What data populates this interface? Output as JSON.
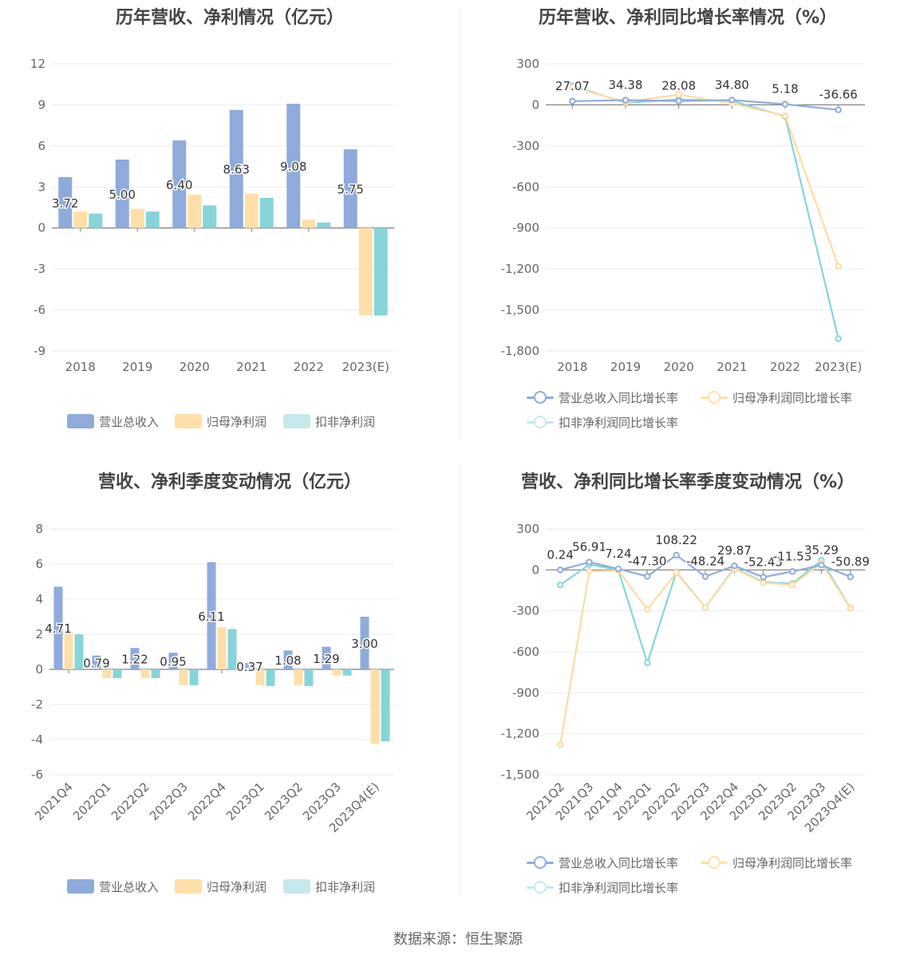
{
  "colors": {
    "revenue": "#8fabdb",
    "net": "#ffdfa8",
    "deduct": "#87d4d9"
  },
  "legends": {
    "bars": [
      "营业总收入",
      "归母净利润",
      "扣非净利润"
    ],
    "lines": [
      "营业总收入同比增长率",
      "归母净利润同比增长率",
      "扣非净利润同比增长率"
    ]
  },
  "footer": {
    "source": "数据来源：恒生聚源"
  },
  "chart_data": [
    {
      "type": "bar",
      "title": "历年营收、净利情况（亿元）",
      "categories": [
        "2018",
        "2019",
        "2020",
        "2021",
        "2022",
        "2023(E)"
      ],
      "ylim": [
        -9,
        12
      ],
      "yticks": [
        "12",
        "9",
        "6",
        "3",
        "0",
        "-3",
        "-6",
        "-9"
      ],
      "series": [
        {
          "name": "营业总收入",
          "values": [
            3.72,
            5.0,
            6.4,
            8.63,
            9.08,
            5.75
          ],
          "labels": [
            "3.72",
            "5.00",
            "6.40",
            "8.63",
            "9.08",
            "5.75"
          ]
        },
        {
          "name": "归母净利润",
          "values": [
            1.2,
            1.4,
            2.45,
            2.5,
            0.6,
            -6.4
          ]
        },
        {
          "name": "扣非净利润",
          "values": [
            1.05,
            1.2,
            1.65,
            2.2,
            0.4,
            -6.4
          ]
        }
      ],
      "legend": "bottom"
    },
    {
      "type": "line",
      "title": "历年营收、净利同比增长率情况（%）",
      "categories": [
        "2018",
        "2019",
        "2020",
        "2021",
        "2022",
        "2023(E)"
      ],
      "ylim": [
        -1800,
        300
      ],
      "yticks": [
        "300",
        "0",
        "-300",
        "-600",
        "-900",
        "-1,200",
        "-1,500",
        "-1,800"
      ],
      "series": [
        {
          "name": "营业总收入同比增长率",
          "values": [
            27.07,
            34.38,
            28.08,
            34.8,
            5.18,
            -36.66
          ],
          "labels": [
            "27.07",
            "34.38",
            "28.08",
            "34.80",
            "5.18",
            "-36.66"
          ]
        },
        {
          "name": "归母净利润同比增长率",
          "values": [
            130,
            20,
            75,
            10,
            -80,
            -1180
          ]
        },
        {
          "name": "扣非净利润同比增长率",
          "values": [
            140,
            15,
            40,
            30,
            -85,
            -1710
          ]
        }
      ],
      "legend": "bottom"
    },
    {
      "type": "bar",
      "title": "营收、净利季度变动情况（亿元）",
      "categories": [
        "2021Q4",
        "2022Q1",
        "2022Q2",
        "2022Q3",
        "2022Q4",
        "2023Q1",
        "2023Q2",
        "2023Q3",
        "2023Q4(E)"
      ],
      "ylim": [
        -6,
        8
      ],
      "yticks": [
        "8",
        "6",
        "4",
        "2",
        "0",
        "-2",
        "-4",
        "-6"
      ],
      "series": [
        {
          "name": "营业总收入",
          "values": [
            4.71,
            0.79,
            1.22,
            0.95,
            6.11,
            0.37,
            1.08,
            1.29,
            3.0
          ],
          "labels": [
            "4.71",
            "0.79",
            "1.22",
            "0.95",
            "6.11",
            "0.37",
            "1.08",
            "1.29",
            "3.00"
          ]
        },
        {
          "name": "归母净利润",
          "values": [
            2.1,
            -0.5,
            -0.5,
            -0.9,
            2.4,
            -0.9,
            -0.9,
            -0.35,
            -4.25
          ]
        },
        {
          "name": "扣非净利润",
          "values": [
            2.0,
            -0.5,
            -0.5,
            -0.9,
            2.3,
            -0.95,
            -0.95,
            -0.35,
            -4.1
          ]
        }
      ],
      "legend": "bottom"
    },
    {
      "type": "line",
      "title": "营收、净利同比增长率季度变动情况（%）",
      "categories": [
        "2021Q2",
        "2021Q3",
        "2021Q4",
        "2022Q1",
        "2022Q2",
        "2022Q3",
        "2022Q4",
        "2023Q1",
        "2023Q2",
        "2023Q3",
        "2023Q4(E)"
      ],
      "ylim": [
        -1500,
        300
      ],
      "yticks": [
        "300",
        "0",
        "-300",
        "-600",
        "-900",
        "-1,200",
        "-1,500"
      ],
      "series": [
        {
          "name": "营业总收入同比增长率",
          "values": [
            0.24,
            56.91,
            7.24,
            -47.3,
            108.22,
            -48.24,
            29.87,
            -52.43,
            -11.53,
            35.29,
            -50.89
          ],
          "labels": [
            "0.24",
            "56.91",
            "7.24",
            "-47.30",
            "108.22",
            "-48.24",
            "29.87",
            "-52.43",
            "-11.53",
            "35.29",
            "-50.89"
          ]
        },
        {
          "name": "归母净利润同比增长率",
          "values": [
            -1280,
            -10,
            -5,
            -290,
            -20,
            -275,
            10,
            -95,
            -110,
            50,
            -280
          ]
        },
        {
          "name": "扣非净利润同比增长率",
          "values": [
            -110,
            40,
            0,
            -680,
            -15,
            -275,
            15,
            -90,
            -100,
            70,
            -280
          ]
        }
      ],
      "legend": "bottom"
    }
  ]
}
